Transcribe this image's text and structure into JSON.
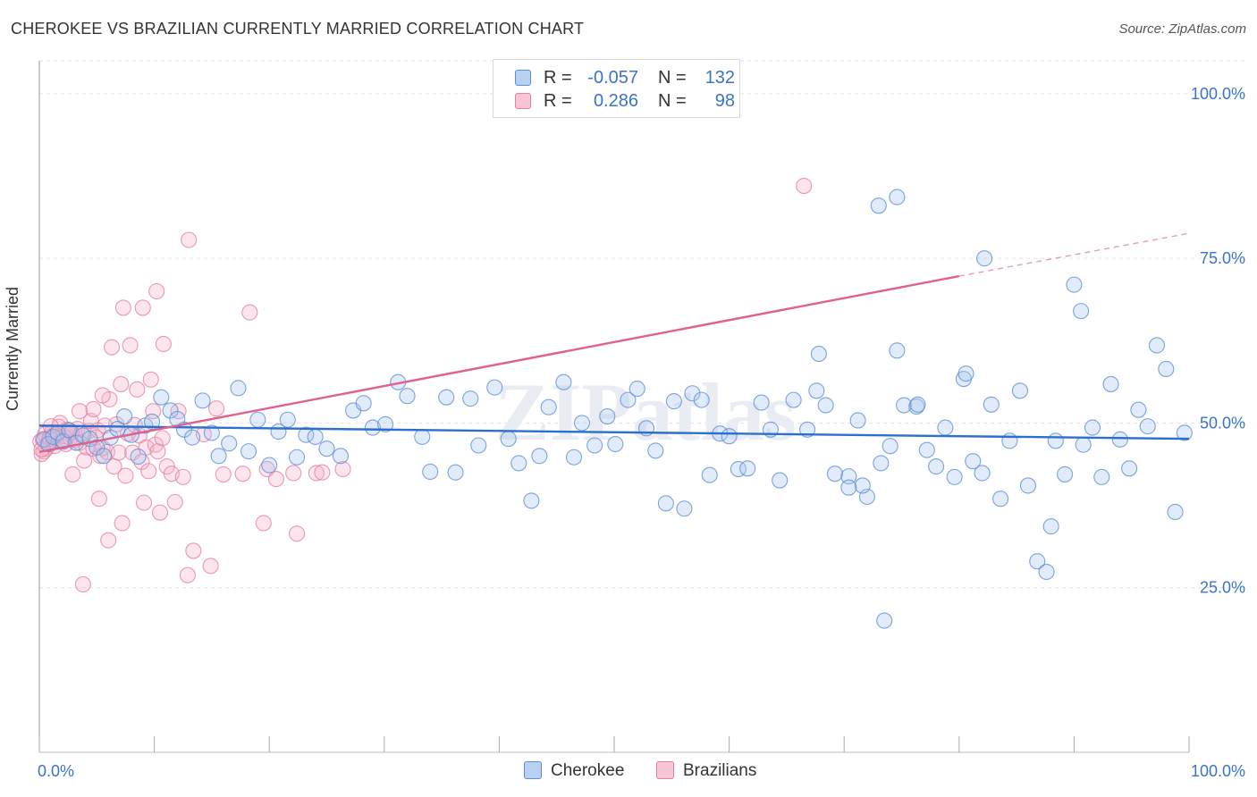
{
  "title": "CHEROKEE VS BRAZILIAN CURRENTLY MARRIED CORRELATION CHART",
  "source": "Source: ZipAtlas.com",
  "watermark": "ZIPatlas",
  "legend": {
    "rows": [
      {
        "r_label": "R =",
        "r_value": "-0.057",
        "n_label": "N =",
        "n_value": "132",
        "color": "#5b8fd6",
        "fill": "#b9d0f0"
      },
      {
        "r_label": "R =",
        "r_value": "0.286",
        "n_label": "N =",
        "n_value": "98",
        "color": "#e67fa2",
        "fill": "#f7c6d6"
      }
    ]
  },
  "bottom_legend": [
    {
      "label": "Cherokee",
      "color": "#5b8fd6",
      "fill": "#b9d0f0"
    },
    {
      "label": "Brazilians",
      "color": "#e67fa2",
      "fill": "#f7c6d6"
    }
  ],
  "chart_data": {
    "type": "scatter",
    "xlabel": "",
    "ylabel": "Currently Married",
    "xlim": [
      0,
      100
    ],
    "ylim": [
      0,
      105
    ],
    "x_tick_labels": [
      "0.0%",
      "100.0%"
    ],
    "y_tick_labels": [
      "25.0%",
      "50.0%",
      "75.0%",
      "100.0%"
    ],
    "y_ticks": [
      25,
      50,
      75,
      100
    ],
    "grid": true,
    "legend_placement": "top-center",
    "series": [
      {
        "name": "Cherokee",
        "color": "#5b8fd6",
        "trend": {
          "x0": 0,
          "y0": 49.6,
          "x1": 100,
          "y1": 47.6
        },
        "points": [
          [
            0.4,
            47.5
          ],
          [
            0.8,
            46.8
          ],
          [
            1.2,
            47.9
          ],
          [
            1.6,
            48.5
          ],
          [
            2.1,
            47.2
          ],
          [
            2.6,
            48.9
          ],
          [
            3.2,
            47.0
          ],
          [
            3.8,
            48.1
          ],
          [
            4.4,
            47.6
          ],
          [
            5.0,
            46.3
          ],
          [
            5.6,
            45.0
          ],
          [
            6.2,
            47.8
          ],
          [
            6.8,
            49.1
          ],
          [
            7.4,
            51.0
          ],
          [
            8.0,
            48.2
          ],
          [
            8.6,
            44.9
          ],
          [
            9.2,
            49.6
          ],
          [
            9.8,
            50.2
          ],
          [
            10.6,
            53.9
          ],
          [
            11.4,
            51.9
          ],
          [
            12.0,
            50.6
          ],
          [
            12.6,
            49.0
          ],
          [
            13.3,
            47.8
          ],
          [
            14.2,
            53.4
          ],
          [
            15.0,
            48.5
          ],
          [
            15.6,
            45.0
          ],
          [
            16.5,
            46.9
          ],
          [
            17.3,
            55.3
          ],
          [
            18.2,
            45.7
          ],
          [
            19.0,
            50.5
          ],
          [
            20.0,
            43.6
          ],
          [
            20.8,
            48.7
          ],
          [
            21.6,
            50.5
          ],
          [
            22.4,
            44.8
          ],
          [
            23.2,
            48.2
          ],
          [
            24.0,
            47.9
          ],
          [
            25.0,
            46.1
          ],
          [
            26.2,
            45.0
          ],
          [
            27.3,
            51.9
          ],
          [
            28.2,
            53.0
          ],
          [
            29.0,
            49.3
          ],
          [
            30.1,
            49.8
          ],
          [
            31.2,
            56.2
          ],
          [
            32.0,
            54.1
          ],
          [
            33.3,
            47.9
          ],
          [
            34.0,
            42.6
          ],
          [
            35.4,
            53.9
          ],
          [
            36.2,
            42.5
          ],
          [
            37.5,
            53.7
          ],
          [
            38.2,
            46.6
          ],
          [
            39.6,
            55.4
          ],
          [
            40.8,
            47.6
          ],
          [
            41.7,
            43.9
          ],
          [
            42.8,
            38.2
          ],
          [
            43.5,
            45.0
          ],
          [
            44.3,
            52.4
          ],
          [
            45.6,
            56.2
          ],
          [
            46.5,
            44.8
          ],
          [
            47.2,
            50.0
          ],
          [
            48.3,
            46.6
          ],
          [
            49.4,
            51.0
          ],
          [
            50.1,
            46.8
          ],
          [
            51.2,
            53.5
          ],
          [
            52.0,
            55.2
          ],
          [
            52.8,
            49.2
          ],
          [
            53.6,
            45.8
          ],
          [
            54.5,
            37.8
          ],
          [
            55.2,
            53.3
          ],
          [
            56.1,
            37.0
          ],
          [
            56.8,
            54.5
          ],
          [
            57.6,
            53.5
          ],
          [
            58.3,
            42.1
          ],
          [
            59.2,
            48.4
          ],
          [
            60.0,
            48.0
          ],
          [
            60.8,
            43.0
          ],
          [
            61.6,
            43.1
          ],
          [
            62.8,
            53.1
          ],
          [
            63.6,
            49.0
          ],
          [
            64.4,
            41.3
          ],
          [
            65.6,
            53.5
          ],
          [
            66.8,
            49.0
          ],
          [
            67.6,
            54.9
          ],
          [
            68.4,
            52.7
          ],
          [
            69.2,
            42.3
          ],
          [
            70.4,
            41.9
          ],
          [
            71.2,
            50.4
          ],
          [
            72.0,
            38.8
          ],
          [
            73.2,
            43.9
          ],
          [
            74.0,
            46.5
          ],
          [
            74.6,
            61.0
          ],
          [
            75.2,
            52.7
          ],
          [
            76.3,
            52.5
          ],
          [
            77.2,
            45.9
          ],
          [
            78.0,
            43.4
          ],
          [
            78.8,
            49.3
          ],
          [
            79.6,
            41.8
          ],
          [
            80.4,
            56.7
          ],
          [
            81.2,
            44.2
          ],
          [
            82.0,
            42.4
          ],
          [
            82.8,
            52.8
          ],
          [
            83.6,
            38.5
          ],
          [
            84.4,
            47.3
          ],
          [
            85.3,
            54.9
          ],
          [
            86.0,
            40.5
          ],
          [
            86.8,
            29.0
          ],
          [
            87.6,
            27.4
          ],
          [
            88.4,
            47.3
          ],
          [
            89.2,
            42.2
          ],
          [
            90.0,
            71.0
          ],
          [
            90.8,
            46.7
          ],
          [
            91.6,
            49.3
          ],
          [
            92.4,
            41.8
          ],
          [
            93.2,
            55.9
          ],
          [
            94.0,
            47.5
          ],
          [
            94.8,
            43.1
          ],
          [
            95.6,
            52.0
          ],
          [
            96.4,
            49.5
          ],
          [
            97.2,
            61.8
          ],
          [
            98.0,
            58.2
          ],
          [
            98.8,
            36.5
          ],
          [
            99.6,
            48.5
          ],
          [
            82.2,
            75.0
          ],
          [
            73.0,
            83.0
          ],
          [
            74.6,
            84.3
          ],
          [
            90.6,
            67.0
          ],
          [
            67.8,
            60.5
          ],
          [
            76.4,
            52.8
          ],
          [
            71.6,
            40.5
          ],
          [
            73.5,
            20.0
          ],
          [
            70.4,
            40.2
          ],
          [
            80.6,
            57.5
          ],
          [
            88.0,
            34.3
          ]
        ]
      },
      {
        "name": "Brazilians",
        "color": "#e67fa2",
        "trend": {
          "x0": 0,
          "y0": 45.6,
          "x1": 80,
          "y1": 72.3,
          "dash_to": {
            "x": 100,
            "y": 78.8
          }
        },
        "points": [
          [
            0.3,
            47.5
          ],
          [
            0.5,
            48.3
          ],
          [
            0.7,
            46.9
          ],
          [
            0.9,
            47.9
          ],
          [
            1.1,
            48.6
          ],
          [
            1.3,
            46.5
          ],
          [
            1.5,
            47.8
          ],
          [
            1.7,
            49.4
          ],
          [
            1.9,
            47.2
          ],
          [
            2.1,
            48.0
          ],
          [
            2.3,
            46.8
          ],
          [
            2.5,
            48.9
          ],
          [
            2.7,
            47.7
          ],
          [
            2.9,
            42.2
          ],
          [
            3.1,
            47.4
          ],
          [
            3.3,
            49.1
          ],
          [
            3.5,
            47.0
          ],
          [
            3.7,
            48.4
          ],
          [
            3.9,
            44.3
          ],
          [
            4.1,
            46.3
          ],
          [
            4.3,
            48.8
          ],
          [
            4.5,
            50.3
          ],
          [
            4.7,
            46.1
          ],
          [
            4.9,
            47.8
          ],
          [
            5.1,
            48.9
          ],
          [
            5.3,
            45.0
          ],
          [
            5.5,
            46.2
          ],
          [
            5.7,
            49.6
          ],
          [
            5.9,
            45.6
          ],
          [
            6.1,
            53.6
          ],
          [
            6.3,
            61.5
          ],
          [
            6.5,
            43.4
          ],
          [
            6.7,
            49.8
          ],
          [
            6.9,
            45.5
          ],
          [
            7.1,
            55.9
          ],
          [
            7.3,
            67.5
          ],
          [
            7.5,
            42.0
          ],
          [
            7.7,
            48.4
          ],
          [
            7.9,
            61.8
          ],
          [
            8.1,
            45.5
          ],
          [
            8.3,
            49.7
          ],
          [
            8.5,
            55.1
          ],
          [
            8.7,
            48.1
          ],
          [
            8.9,
            44.1
          ],
          [
            9.1,
            37.9
          ],
          [
            9.3,
            46.3
          ],
          [
            9.5,
            42.7
          ],
          [
            9.7,
            56.6
          ],
          [
            9.9,
            51.8
          ],
          [
            10.1,
            46.7
          ],
          [
            10.3,
            45.7
          ],
          [
            10.5,
            36.4
          ],
          [
            10.7,
            47.7
          ],
          [
            11.1,
            43.4
          ],
          [
            11.5,
            42.3
          ],
          [
            12.1,
            51.8
          ],
          [
            12.5,
            41.8
          ],
          [
            13.0,
            77.8
          ],
          [
            13.4,
            30.6
          ],
          [
            14.3,
            48.3
          ],
          [
            14.9,
            28.3
          ],
          [
            15.4,
            52.2
          ],
          [
            16.0,
            42.2
          ],
          [
            17.7,
            42.3
          ],
          [
            18.3,
            66.8
          ],
          [
            19.5,
            34.8
          ],
          [
            19.8,
            43.0
          ],
          [
            20.6,
            41.5
          ],
          [
            22.1,
            42.4
          ],
          [
            22.4,
            33.2
          ],
          [
            24.1,
            42.4
          ],
          [
            24.6,
            42.5
          ],
          [
            26.4,
            43.0
          ],
          [
            66.5,
            86.0
          ],
          [
            12.9,
            26.9
          ],
          [
            3.8,
            25.5
          ],
          [
            5.2,
            38.5
          ],
          [
            6.0,
            32.2
          ],
          [
            7.2,
            34.8
          ],
          [
            9.0,
            67.5
          ],
          [
            10.2,
            70.0
          ],
          [
            10.8,
            62.0
          ],
          [
            11.8,
            38.0
          ],
          [
            5.5,
            54.2
          ],
          [
            4.7,
            52.1
          ],
          [
            3.5,
            51.8
          ],
          [
            2.4,
            49.0
          ],
          [
            1.8,
            50.0
          ],
          [
            1.0,
            49.5
          ],
          [
            0.6,
            46.1
          ],
          [
            0.4,
            45.7
          ],
          [
            0.2,
            45.3
          ],
          [
            0.1,
            47.2
          ],
          [
            0.2,
            46.0
          ],
          [
            0.9,
            47.6
          ],
          [
            1.4,
            48.2
          ],
          [
            2.0,
            47.3
          ],
          [
            2.8,
            48.6
          ]
        ]
      }
    ]
  }
}
